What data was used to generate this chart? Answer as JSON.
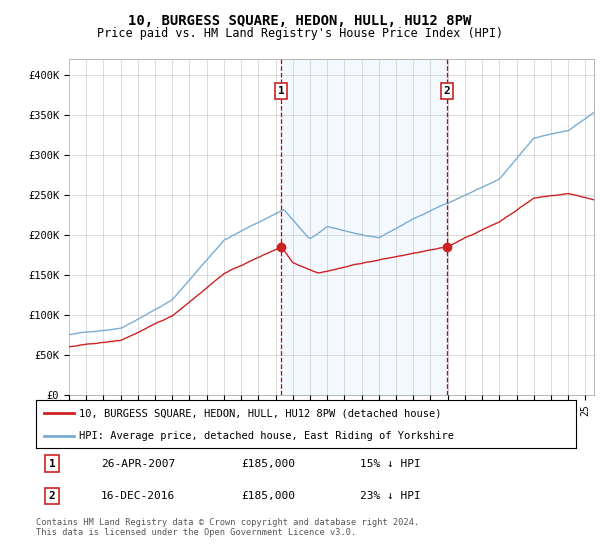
{
  "title": "10, BURGESS SQUARE, HEDON, HULL, HU12 8PW",
  "subtitle": "Price paid vs. HM Land Registry's House Price Index (HPI)",
  "title_fontsize": 10,
  "subtitle_fontsize": 8.5,
  "ylim": [
    0,
    420000
  ],
  "yticks": [
    0,
    50000,
    100000,
    150000,
    200000,
    250000,
    300000,
    350000,
    400000
  ],
  "ytick_labels": [
    "£0",
    "£50K",
    "£100K",
    "£150K",
    "£200K",
    "£250K",
    "£300K",
    "£350K",
    "£400K"
  ],
  "hpi_color": "#7aadd4",
  "price_color": "#cc2222",
  "vline_color": "#cc0000",
  "shade_color": "#ddeeff",
  "marker1_x": 2007.32,
  "marker2_x": 2016.96,
  "marker1_price": 185000,
  "marker2_price": 185000,
  "marker1_date": "26-APR-2007",
  "marker1_pricestr": "£185,000",
  "marker1_hpi": "15% ↓ HPI",
  "marker2_date": "16-DEC-2016",
  "marker2_pricestr": "£185,000",
  "marker2_hpi": "23% ↓ HPI",
  "legend_line1": "10, BURGESS SQUARE, HEDON, HULL, HU12 8PW (detached house)",
  "legend_line2": "HPI: Average price, detached house, East Riding of Yorkshire",
  "footnote": "Contains HM Land Registry data © Crown copyright and database right 2024.\nThis data is licensed under the Open Government Licence v3.0.",
  "xmin": 1995,
  "xmax": 2025.5,
  "fig_width": 6.0,
  "fig_height": 5.6
}
